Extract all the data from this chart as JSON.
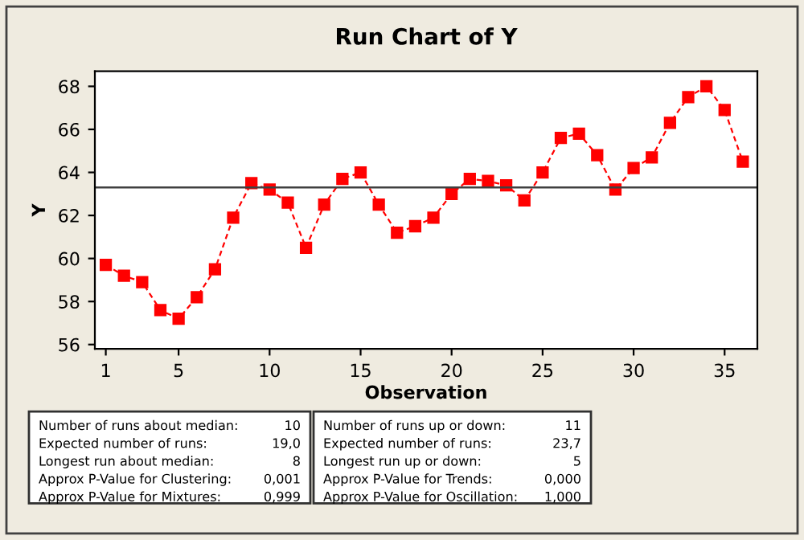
{
  "chart_data": {
    "type": "line",
    "title": "Run Chart of Y",
    "xlabel": "Observation",
    "ylabel": "Y",
    "x": [
      1,
      2,
      3,
      4,
      5,
      6,
      7,
      8,
      9,
      10,
      11,
      12,
      13,
      14,
      15,
      16,
      17,
      18,
      19,
      20,
      21,
      22,
      23,
      24,
      25,
      26,
      27,
      28,
      29,
      30,
      31,
      32,
      33,
      34,
      35,
      36
    ],
    "series": [
      {
        "color": "#ff0000",
        "values": [
          59.7,
          59.2,
          58.9,
          57.6,
          57.2,
          58.2,
          59.5,
          61.9,
          63.5,
          63.2,
          62.6,
          60.5,
          62.5,
          63.7,
          64.0,
          62.5,
          61.2,
          61.5,
          61.9,
          63.0,
          63.7,
          63.6,
          63.4,
          62.7,
          64.0,
          65.6,
          65.8,
          64.8,
          63.2,
          64.2,
          64.7,
          66.3,
          67.5,
          68.0,
          66.9,
          64.5
        ]
      }
    ],
    "marker": "square",
    "line_style": "dashed",
    "xlim": [
      0.4,
      36.8
    ],
    "ylim": [
      55.8,
      68.7
    ],
    "xticks": [
      1,
      5,
      10,
      15,
      20,
      25,
      30,
      35
    ],
    "yticks": [
      56,
      58,
      60,
      62,
      64,
      66,
      68
    ],
    "ref_lines": [
      {
        "axis": "y",
        "value": 63.3,
        "color": "#404040"
      }
    ],
    "annotations": [
      "Number of runs about median:",
      "10",
      "Expected number of runs:",
      "19,0",
      "Longest run about median:",
      "8",
      "Approx P-Value for Clustering:",
      "0,001",
      "Approx P-Value for Mixtures:",
      "0,999",
      "Number of runs up or down:",
      "11",
      "Expected number of runs:",
      "23,7",
      "Longest run up or down:",
      "5",
      "Approx P-Value for Trends:",
      "0,000",
      "Approx P-Value for Oscillation:",
      "1,000"
    ]
  }
}
